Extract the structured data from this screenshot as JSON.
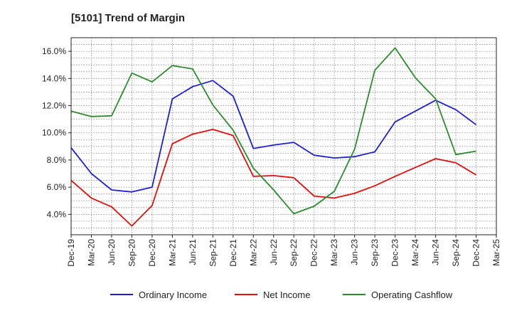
{
  "chart_data": {
    "type": "line",
    "title": "[5101]  Trend of Margin",
    "categories": [
      "Dec-19",
      "Mar-20",
      "Jun-20",
      "Sep-20",
      "Dec-20",
      "Mar-21",
      "Jun-21",
      "Sep-21",
      "Dec-21",
      "Mar-22",
      "Jun-22",
      "Sep-22",
      "Dec-22",
      "Mar-23",
      "Jun-23",
      "Sep-23",
      "Dec-23",
      "Mar-24",
      "Jun-24",
      "Sep-24",
      "Dec-24",
      "Mar-25"
    ],
    "yticks": [
      "4.0%",
      "6.0%",
      "8.0%",
      "10.0%",
      "12.0%",
      "14.0%",
      "16.0%"
    ],
    "ytick_values": [
      4,
      6,
      8,
      10,
      12,
      14,
      16
    ],
    "ylim": [
      2.5,
      17
    ],
    "grid": true,
    "legend_position": "bottom",
    "series": [
      {
        "name": "Ordinary Income",
        "color": "#1f1fd1",
        "values": [
          8.9,
          7.0,
          5.8,
          5.65,
          6.0,
          12.5,
          13.4,
          13.85,
          12.7,
          8.85,
          9.1,
          9.3,
          8.35,
          8.15,
          8.25,
          8.6,
          10.8,
          11.6,
          12.4,
          11.7,
          10.6,
          null
        ]
      },
      {
        "name": "Net Income",
        "color": "#e01010",
        "values": [
          6.5,
          5.2,
          4.55,
          3.15,
          4.65,
          9.2,
          9.9,
          10.25,
          9.8,
          6.8,
          6.85,
          6.7,
          5.35,
          5.2,
          5.55,
          6.1,
          6.8,
          7.45,
          8.1,
          7.8,
          6.9,
          null
        ]
      },
      {
        "name": "Operating Cashflow",
        "color": "#2e8b2e",
        "values": [
          11.6,
          11.2,
          11.25,
          14.4,
          13.75,
          14.95,
          14.7,
          12.05,
          10.2,
          7.4,
          5.8,
          4.05,
          4.6,
          5.7,
          8.8,
          14.6,
          16.25,
          14.05,
          12.5,
          8.4,
          8.65,
          null
        ]
      }
    ]
  }
}
